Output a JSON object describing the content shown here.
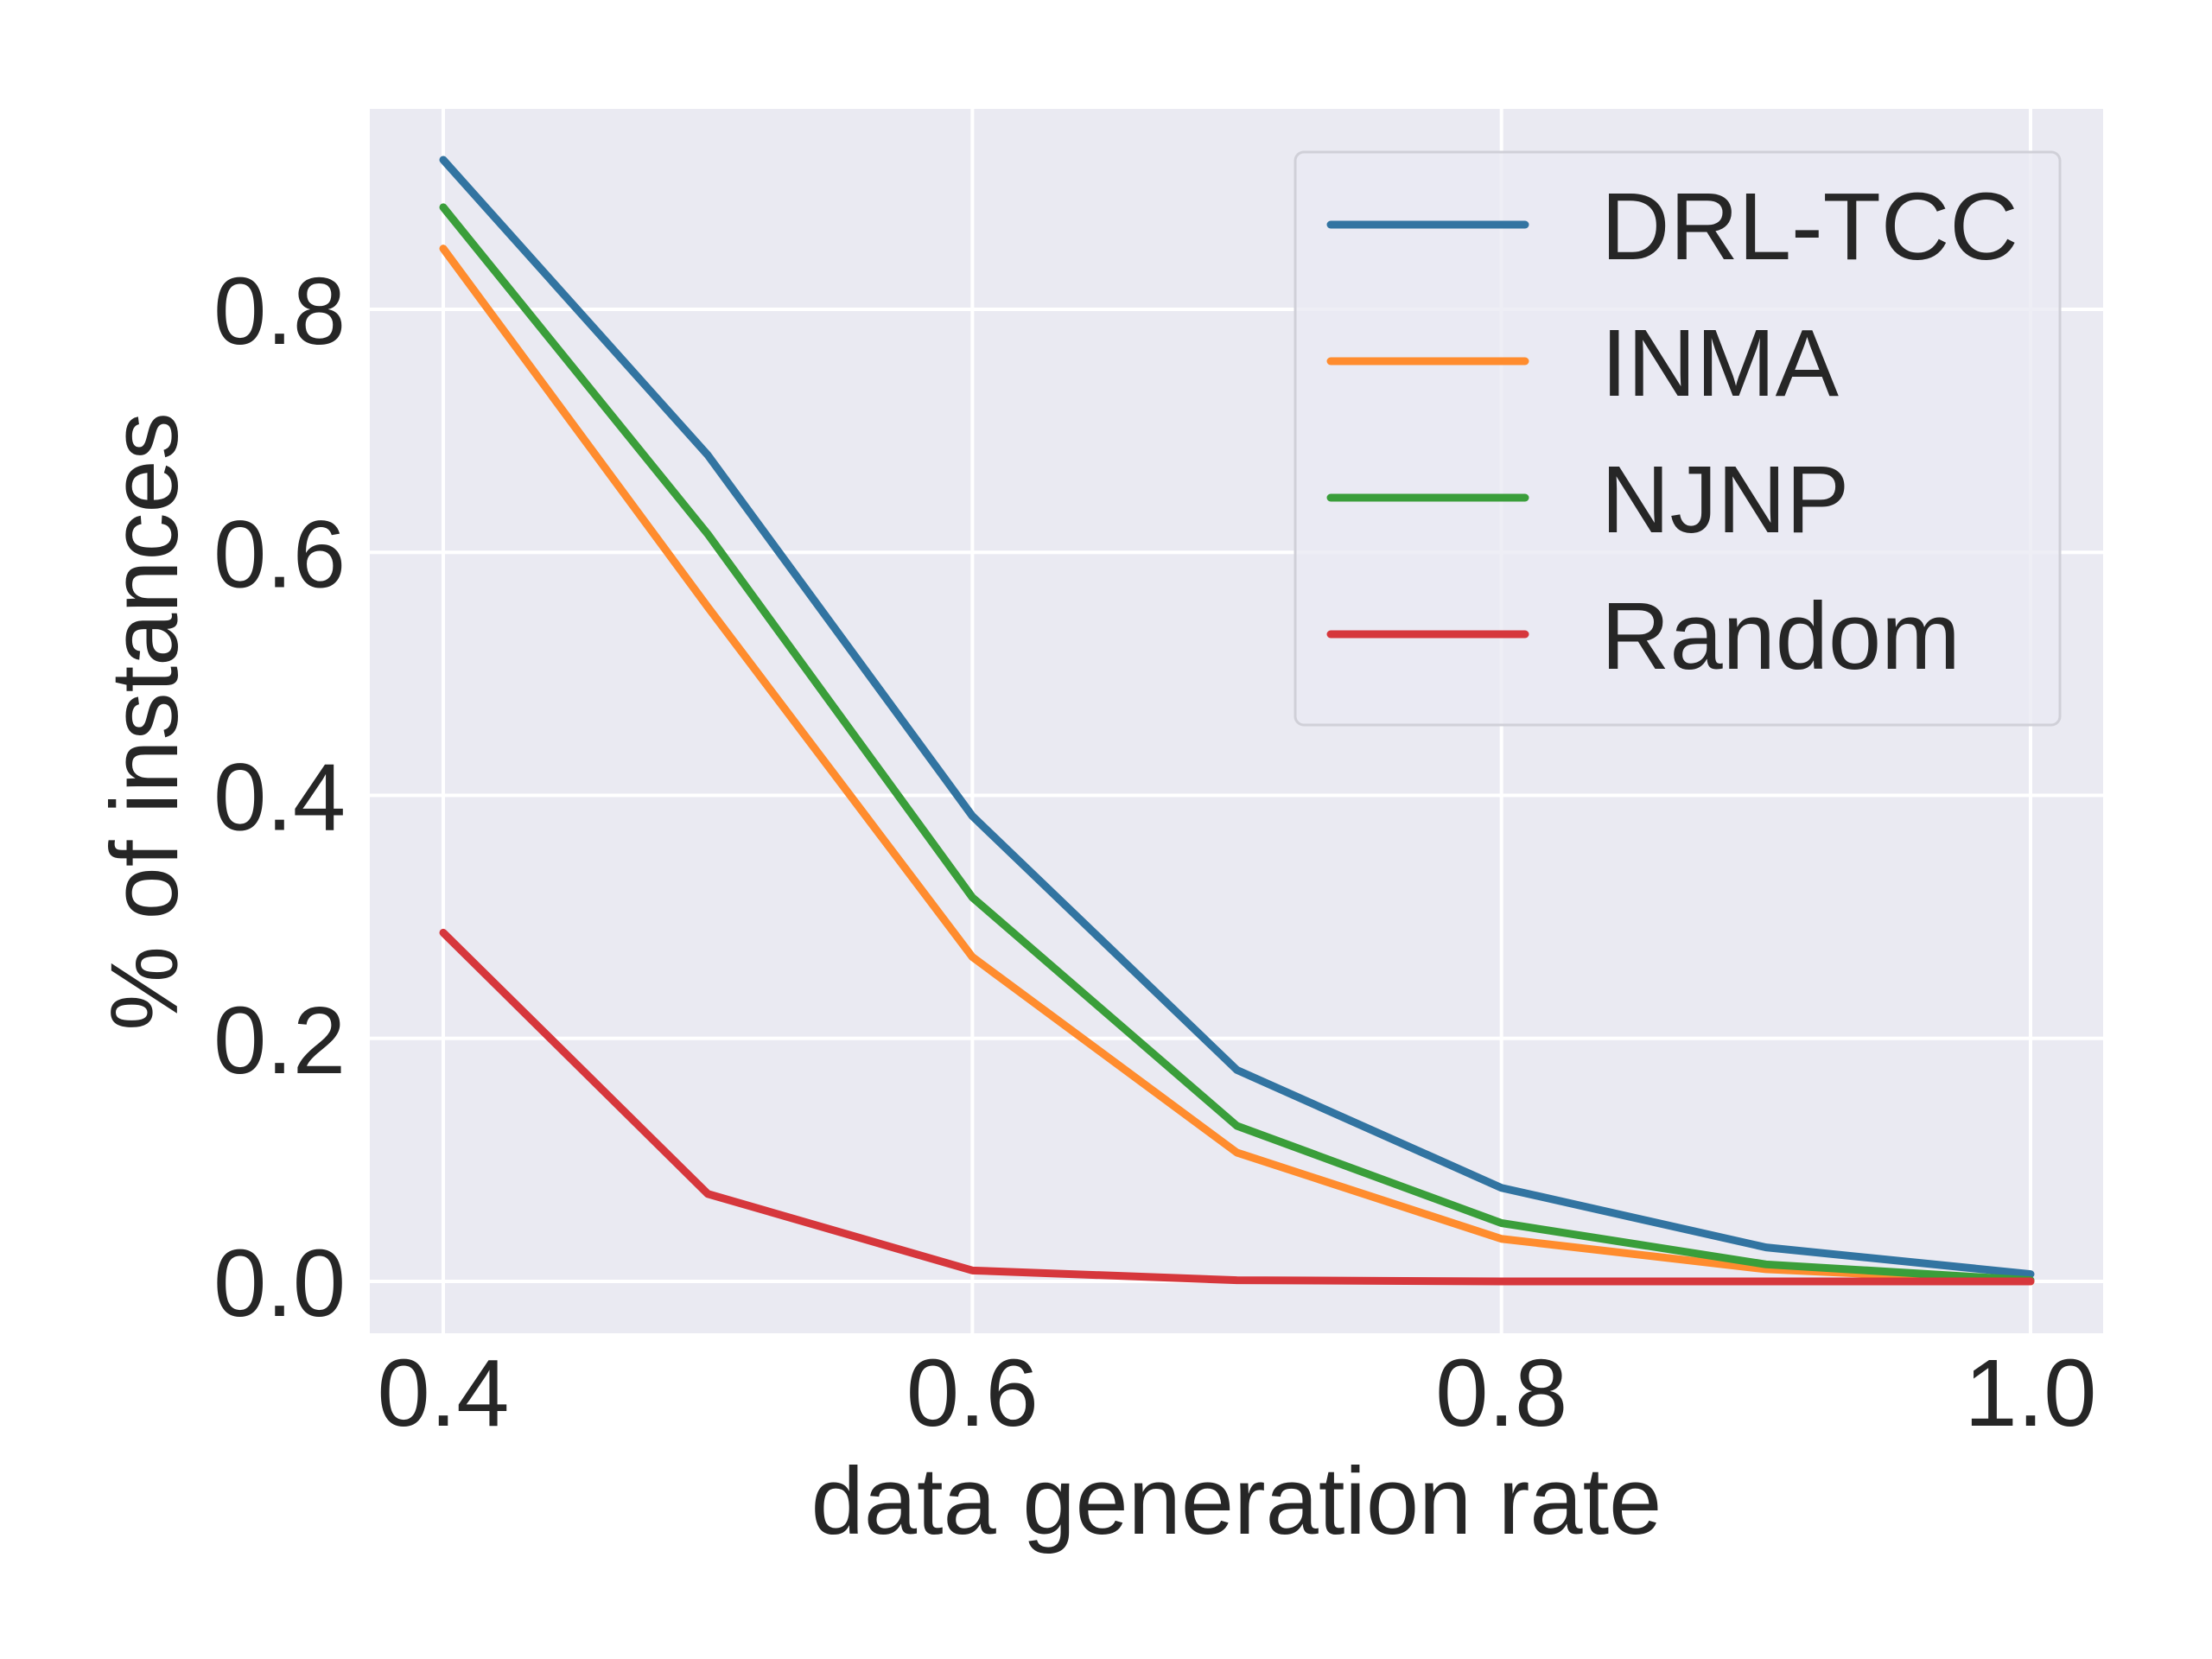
{
  "chart_data": {
    "type": "line",
    "title": "",
    "xlabel": "data generation rate",
    "ylabel": "% of instances",
    "x": [
      0.4,
      0.5,
      0.6,
      0.7,
      0.8,
      0.9,
      1.0
    ],
    "xlim": [
      0.37,
      1.03
    ],
    "ylim": [
      -0.05,
      0.96
    ],
    "xticks": [
      0.4,
      0.6,
      0.8,
      1.0
    ],
    "xtick_labels": [
      "0.4",
      "0.6",
      "0.8",
      "1.0"
    ],
    "yticks": [
      0.0,
      0.2,
      0.4,
      0.6,
      0.8
    ],
    "ytick_labels": [
      "0.0",
      "0.2",
      "0.4",
      "0.6",
      "0.8"
    ],
    "grid": true,
    "legend_position": "top-right",
    "series": [
      {
        "name": "DRL-TCC",
        "color": "#3274a1",
        "values": [
          0.923,
          0.68,
          0.383,
          0.174,
          0.077,
          0.028,
          0.006
        ]
      },
      {
        "name": "INMA",
        "color": "#ff8c2e",
        "values": [
          0.85,
          0.555,
          0.267,
          0.106,
          0.035,
          0.01,
          0.0
        ]
      },
      {
        "name": "NJNP",
        "color": "#3a9e3a",
        "values": [
          0.884,
          0.615,
          0.316,
          0.128,
          0.048,
          0.014,
          0.001
        ]
      },
      {
        "name": "Random",
        "color": "#d6373c",
        "values": [
          0.287,
          0.072,
          0.009,
          0.001,
          0.0,
          0.0,
          0.0
        ]
      }
    ]
  },
  "colors": {
    "plot_background": "#eaeaf2",
    "grid": "#ffffff",
    "text": "#262626"
  }
}
